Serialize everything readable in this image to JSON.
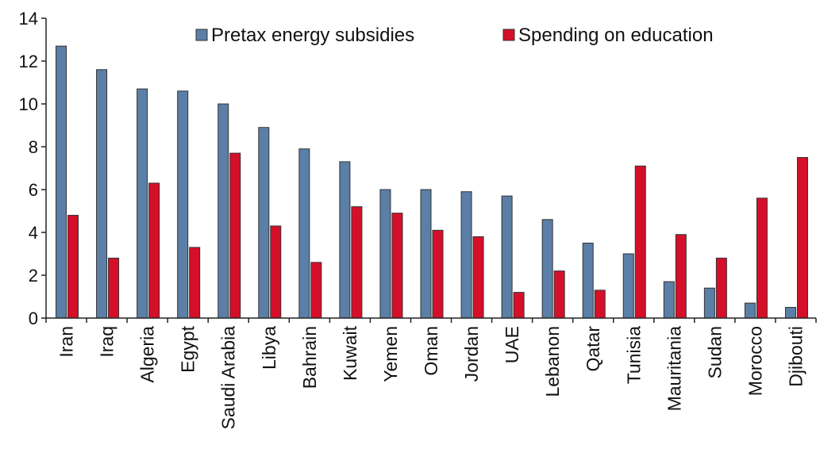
{
  "chart_data": {
    "type": "bar",
    "categories": [
      "Iran",
      "Iraq",
      "Algeria",
      "Egypt",
      "Saudi Arabia",
      "Libya",
      "Bahrain",
      "Kuwait",
      "Yemen",
      "Oman",
      "Jordan",
      "UAE",
      "Lebanon",
      "Qatar",
      "Tunisia",
      "Mauritania",
      "Sudan",
      "Morocco",
      "Djibouti"
    ],
    "series": [
      {
        "name": "Pretax energy subsidies",
        "color": "#5b7fa6",
        "values": [
          12.7,
          11.6,
          10.7,
          10.6,
          10.0,
          8.9,
          7.9,
          7.3,
          6.0,
          6.0,
          5.9,
          5.7,
          4.6,
          3.5,
          3.0,
          1.7,
          1.4,
          0.7,
          0.5
        ]
      },
      {
        "name": "Spending on education",
        "color": "#d50f2a",
        "values": [
          4.8,
          2.8,
          6.3,
          3.3,
          7.7,
          4.3,
          2.6,
          5.2,
          4.9,
          4.1,
          3.8,
          1.2,
          2.2,
          1.3,
          7.1,
          3.9,
          2.8,
          5.6,
          7.5
        ]
      }
    ],
    "yticks": [
      "0",
      "2",
      "4",
      "6",
      "8",
      "10",
      "12",
      "14"
    ],
    "ylim": [
      0,
      14
    ],
    "legend_position": "top",
    "grid": false
  }
}
